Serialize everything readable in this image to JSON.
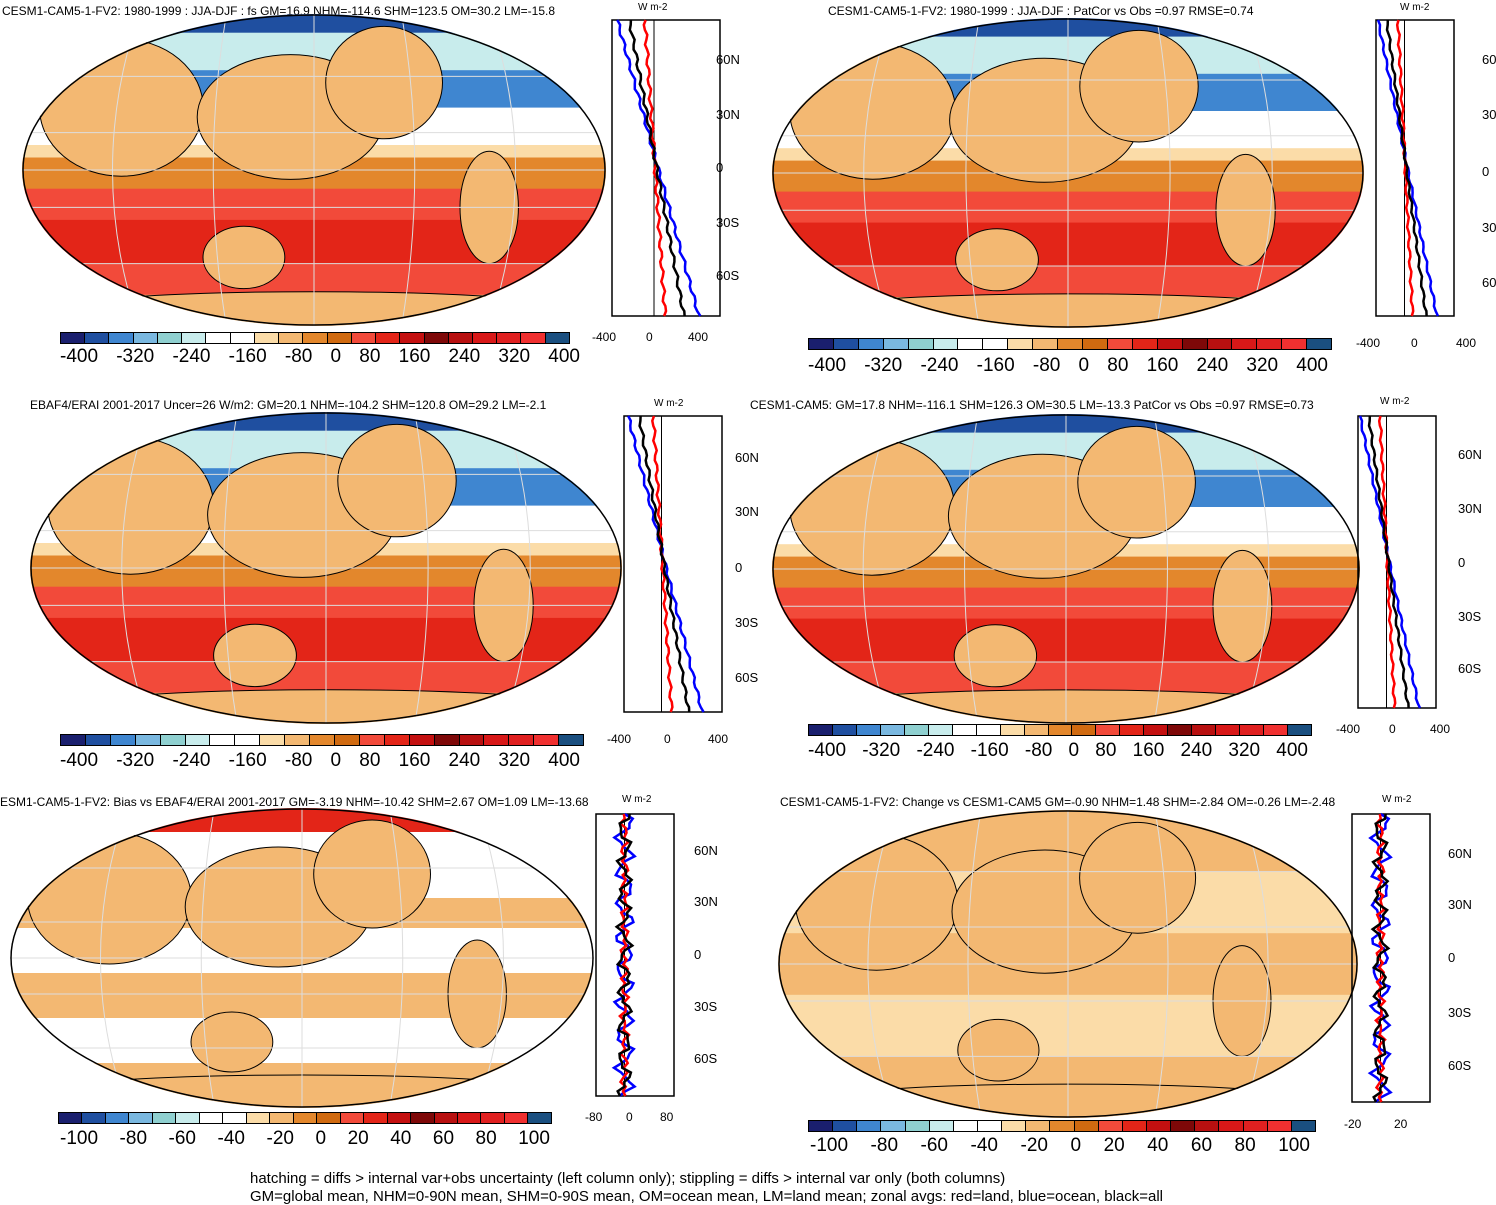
{
  "panels": [
    {
      "title": "CESM1-CAM5-1-FV2: 1980-1999 : JJA-DJF : fs GM=16.9 NHM=-114.6 SHM=123.5 OM=30.2 LM=-15.8",
      "colorbar_labels": [
        "-400",
        "-320",
        "-240",
        "-160",
        "-80",
        "0",
        "80",
        "160",
        "240",
        "320",
        "400"
      ],
      "zonal_ticks": [
        "-400",
        "0",
        "400"
      ],
      "lat_labels": [
        "60N",
        "30N",
        "0",
        "30S",
        "60S"
      ],
      "unit": "W m-2"
    },
    {
      "title": "CESM1-CAM5-1-FV2: 1980-1999 : JJA-DJF : PatCor vs Obs =0.97 RMSE=0.74",
      "colorbar_labels": [
        "-400",
        "-320",
        "-240",
        "-160",
        "-80",
        "0",
        "80",
        "160",
        "240",
        "320",
        "400"
      ],
      "zonal_ticks": [
        "-400",
        "0",
        "400"
      ],
      "lat_labels": [
        "60",
        "30",
        "0",
        "30",
        "60"
      ],
      "unit": "W m-2"
    },
    {
      "title": "EBAF4/ERAI 2001-2017 Uncer=26 W/m2: GM=20.1 NHM=-104.2 SHM=120.8 OM=29.2 LM=-2.1",
      "colorbar_labels": [
        "-400",
        "-320",
        "-240",
        "-160",
        "-80",
        "0",
        "80",
        "160",
        "240",
        "320",
        "400"
      ],
      "zonal_ticks": [
        "-400",
        "0",
        "400"
      ],
      "lat_labels": [
        "60N",
        "30N",
        "0",
        "30S",
        "60S"
      ],
      "unit": "W m-2"
    },
    {
      "title": "CESM1-CAM5: GM=17.8 NHM=-116.1 SHM=126.3 OM=30.5 LM=-13.3 PatCor vs Obs =0.97 RMSE=0.73",
      "colorbar_labels": [
        "-400",
        "-320",
        "-240",
        "-160",
        "-80",
        "0",
        "80",
        "160",
        "240",
        "320",
        "400"
      ],
      "zonal_ticks": [
        "-400",
        "0",
        "400"
      ],
      "lat_labels": [
        "60N",
        "30N",
        "0",
        "30S",
        "60S"
      ],
      "unit": "W m-2"
    },
    {
      "title": "ESM1-CAM5-1-FV2: Bias vs EBAF4/ERAI 2001-2017 GM=-3.19 NHM=-10.42 SHM=2.67 OM=1.09 LM=-13.68",
      "colorbar_labels": [
        "-100",
        "-80",
        "-60",
        "-40",
        "-20",
        "0",
        "20",
        "40",
        "60",
        "80",
        "100"
      ],
      "zonal_ticks": [
        "-80",
        "0",
        "80"
      ],
      "lat_labels": [
        "60N",
        "30N",
        "0",
        "30S",
        "60S"
      ],
      "unit": "W m-2"
    },
    {
      "title": "CESM1-CAM5-1-FV2: Change vs CESM1-CAM5 GM=-0.90 NHM=1.48 SHM=-2.84 OM=-0.26 LM=-2.48",
      "colorbar_labels": [
        "-100",
        "-80",
        "-60",
        "-40",
        "-20",
        "0",
        "20",
        "40",
        "60",
        "80",
        "100"
      ],
      "zonal_ticks": [
        "-20",
        "20"
      ],
      "lat_labels": [
        "60N",
        "30N",
        "0",
        "30S",
        "60S"
      ],
      "unit": "W m-2"
    }
  ],
  "colors": {
    "palette": [
      "#1a1f6e",
      "#1f4fa0",
      "#3f86d0",
      "#7ab8e0",
      "#8fd0d0",
      "#c8ecec",
      "#ffffff",
      "#ffffff",
      "#fbdca8",
      "#f3b872",
      "#e3872c",
      "#d06a10",
      "#f24a3a",
      "#e32518",
      "#c41010",
      "#7e0808",
      "#b81010",
      "#d81818",
      "#e02020",
      "#f03030",
      "#1a4f80"
    ],
    "ocean_line_blue": "#0000ff",
    "land_line_red": "#ff0000",
    "all_line_black": "#000000"
  },
  "footer": {
    "line1": "hatching = diffs > internal var+obs uncertainty (left column only); stippling = diffs > internal var only (both columns)",
    "line2": "GM=global mean, NHM=0-90N mean, SHM=0-90S mean, OM=ocean mean, LM=land mean; zonal avgs: red=land, blue=ocean, black=all"
  }
}
